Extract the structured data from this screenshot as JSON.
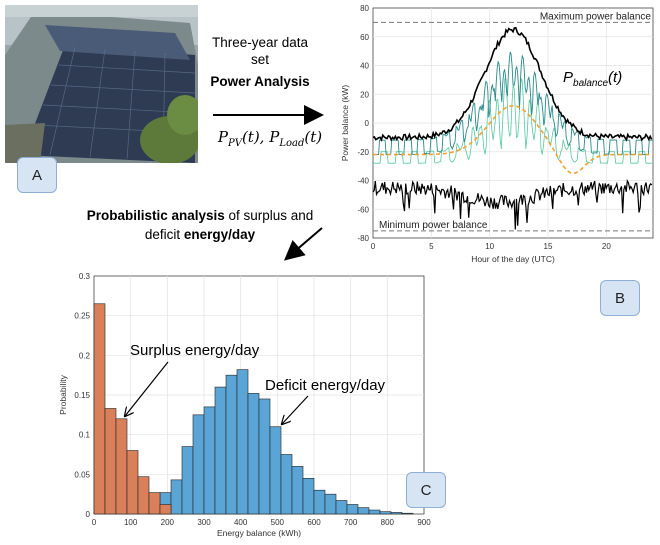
{
  "labels": {
    "a": "A",
    "b": "B",
    "c": "C"
  },
  "flow": {
    "line1": "Three-year data",
    "line2": "set",
    "line3": "Power Analysis",
    "formula_pv_sub": "PV",
    "formula_load_sub": "Load",
    "prob_bold": "Probabilistic analysis",
    "prob_rest": " of surplus and",
    "deficit_plain": "deficit ",
    "deficit_bold": "energy/day"
  },
  "chart_b": {
    "type": "line",
    "ylabel": "Power balance (kW)",
    "xlabel": "Hour of the day (UTC)",
    "xlim": [
      0,
      24
    ],
    "ylim": [
      -80,
      80
    ],
    "xticks": [
      "0",
      "5",
      "10",
      "15",
      "20"
    ],
    "yticks": [
      "80",
      "60",
      "40",
      "20",
      "0",
      "-20",
      "-40",
      "-60",
      "-80"
    ],
    "max_label": "Maximum power balance",
    "min_label": "Minimum power balance",
    "balance_sub": "balance",
    "max_level": 70,
    "min_level": -75,
    "colors": {
      "max": "#000000",
      "min": "#000000",
      "teal": "#2a8a8a",
      "green": "#55c9a0",
      "orange": "#f0a030"
    }
  },
  "chart_data": {
    "type": "bar",
    "xlabel": "Energy balance (kWh)",
    "ylabel": "Probability",
    "xlim": [
      0,
      900
    ],
    "ylim": [
      0,
      0.3
    ],
    "xticks": [
      "0",
      "100",
      "200",
      "300",
      "400",
      "500",
      "600",
      "700",
      "800",
      "900"
    ],
    "yticks": [
      "0",
      "0.05",
      "0.1",
      "0.15",
      "0.2",
      "0.25",
      "0.3"
    ],
    "bin_width": 30,
    "series": [
      {
        "name": "Surplus energy/day",
        "color": "#d9805a",
        "edges": [
          0,
          30,
          60,
          90,
          120,
          150,
          180
        ],
        "values": [
          0.265,
          0.133,
          0.12,
          0.08,
          0.047,
          0.027,
          0.012
        ]
      },
      {
        "name": "Deficit energy/day",
        "color": "#5ba5d6",
        "edges": [
          150,
          180,
          210,
          240,
          270,
          300,
          330,
          360,
          390,
          420,
          450,
          480,
          510,
          540,
          570,
          600,
          630,
          660,
          690,
          720,
          750,
          780,
          810,
          840
        ],
        "values": [
          0.01,
          0.027,
          0.043,
          0.085,
          0.125,
          0.135,
          0.16,
          0.175,
          0.182,
          0.152,
          0.145,
          0.11,
          0.075,
          0.06,
          0.045,
          0.03,
          0.025,
          0.017,
          0.012,
          0.008,
          0.005,
          0.003,
          0.002,
          0.001
        ]
      }
    ],
    "annotations": [
      "Surplus energy/day",
      "Deficit energy/day"
    ]
  }
}
